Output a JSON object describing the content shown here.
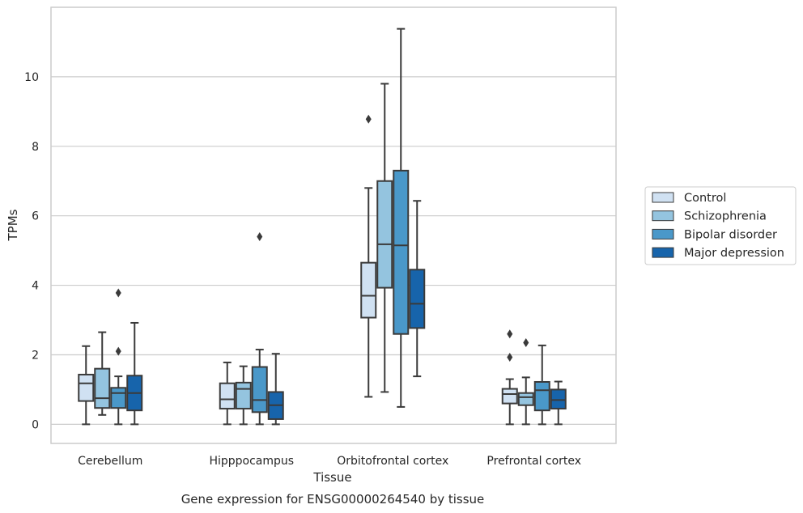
{
  "chart_data": {
    "type": "box",
    "xlabel": "Tissue",
    "ylabel": "TPMs",
    "caption": "Gene expression for ENSG00000264540 by tissue",
    "ylim": [
      -0.55,
      12.0
    ],
    "yticks": [
      0,
      2,
      4,
      6,
      8,
      10
    ],
    "grid": "horizontal",
    "legend_position": "right",
    "categories": [
      "Cerebellum",
      "Hipppocampus",
      "Orbitofrontal cortex",
      "Prefrontal cortex"
    ],
    "series": [
      {
        "name": "Control",
        "color": "#d0e1f2",
        "boxes": [
          {
            "whisker_low": 0.0,
            "q1": 0.67,
            "median": 1.18,
            "q3": 1.43,
            "whisker_high": 2.25,
            "outliers": []
          },
          {
            "whisker_low": 0.0,
            "q1": 0.45,
            "median": 0.72,
            "q3": 1.18,
            "whisker_high": 1.78,
            "outliers": []
          },
          {
            "whisker_low": 0.79,
            "q1": 3.07,
            "median": 3.7,
            "q3": 4.65,
            "whisker_high": 6.8,
            "outliers": [
              8.78
            ]
          },
          {
            "whisker_low": 0.0,
            "q1": 0.6,
            "median": 0.87,
            "q3": 1.02,
            "whisker_high": 1.3,
            "outliers": [
              1.93,
              2.6
            ]
          }
        ]
      },
      {
        "name": "Schizophrenia",
        "color": "#94c4df",
        "boxes": [
          {
            "whisker_low": 0.27,
            "q1": 0.47,
            "median": 0.75,
            "q3": 1.6,
            "whisker_high": 2.65,
            "outliers": []
          },
          {
            "whisker_low": 0.0,
            "q1": 0.45,
            "median": 1.02,
            "q3": 1.2,
            "whisker_high": 1.67,
            "outliers": []
          },
          {
            "whisker_low": 0.93,
            "q1": 3.93,
            "median": 5.18,
            "q3": 7.0,
            "whisker_high": 9.8,
            "outliers": []
          },
          {
            "whisker_low": 0.0,
            "q1": 0.55,
            "median": 0.78,
            "q3": 0.9,
            "whisker_high": 1.35,
            "outliers": [
              2.35
            ]
          }
        ]
      },
      {
        "name": "Bipolar disorder",
        "color": "#4a98c9",
        "boxes": [
          {
            "whisker_low": 0.0,
            "q1": 0.47,
            "median": 0.9,
            "q3": 1.05,
            "whisker_high": 1.38,
            "outliers": [
              2.1,
              3.78
            ]
          },
          {
            "whisker_low": 0.0,
            "q1": 0.35,
            "median": 0.7,
            "q3": 1.65,
            "whisker_high": 2.15,
            "outliers": [
              5.4
            ]
          },
          {
            "whisker_low": 0.5,
            "q1": 2.6,
            "median": 5.15,
            "q3": 7.3,
            "whisker_high": 11.38,
            "outliers": []
          },
          {
            "whisker_low": 0.0,
            "q1": 0.4,
            "median": 0.98,
            "q3": 1.22,
            "whisker_high": 2.27,
            "outliers": []
          }
        ]
      },
      {
        "name": "Major depression",
        "color": "#1764ab",
        "boxes": [
          {
            "whisker_low": 0.0,
            "q1": 0.4,
            "median": 0.9,
            "q3": 1.4,
            "whisker_high": 2.92,
            "outliers": []
          },
          {
            "whisker_low": 0.0,
            "q1": 0.15,
            "median": 0.55,
            "q3": 0.93,
            "whisker_high": 2.03,
            "outliers": []
          },
          {
            "whisker_low": 1.38,
            "q1": 2.77,
            "median": 3.47,
            "q3": 4.45,
            "whisker_high": 6.43,
            "outliers": []
          },
          {
            "whisker_low": 0.0,
            "q1": 0.45,
            "median": 0.7,
            "q3": 1.0,
            "whisker_high": 1.23,
            "outliers": []
          }
        ]
      }
    ]
  }
}
